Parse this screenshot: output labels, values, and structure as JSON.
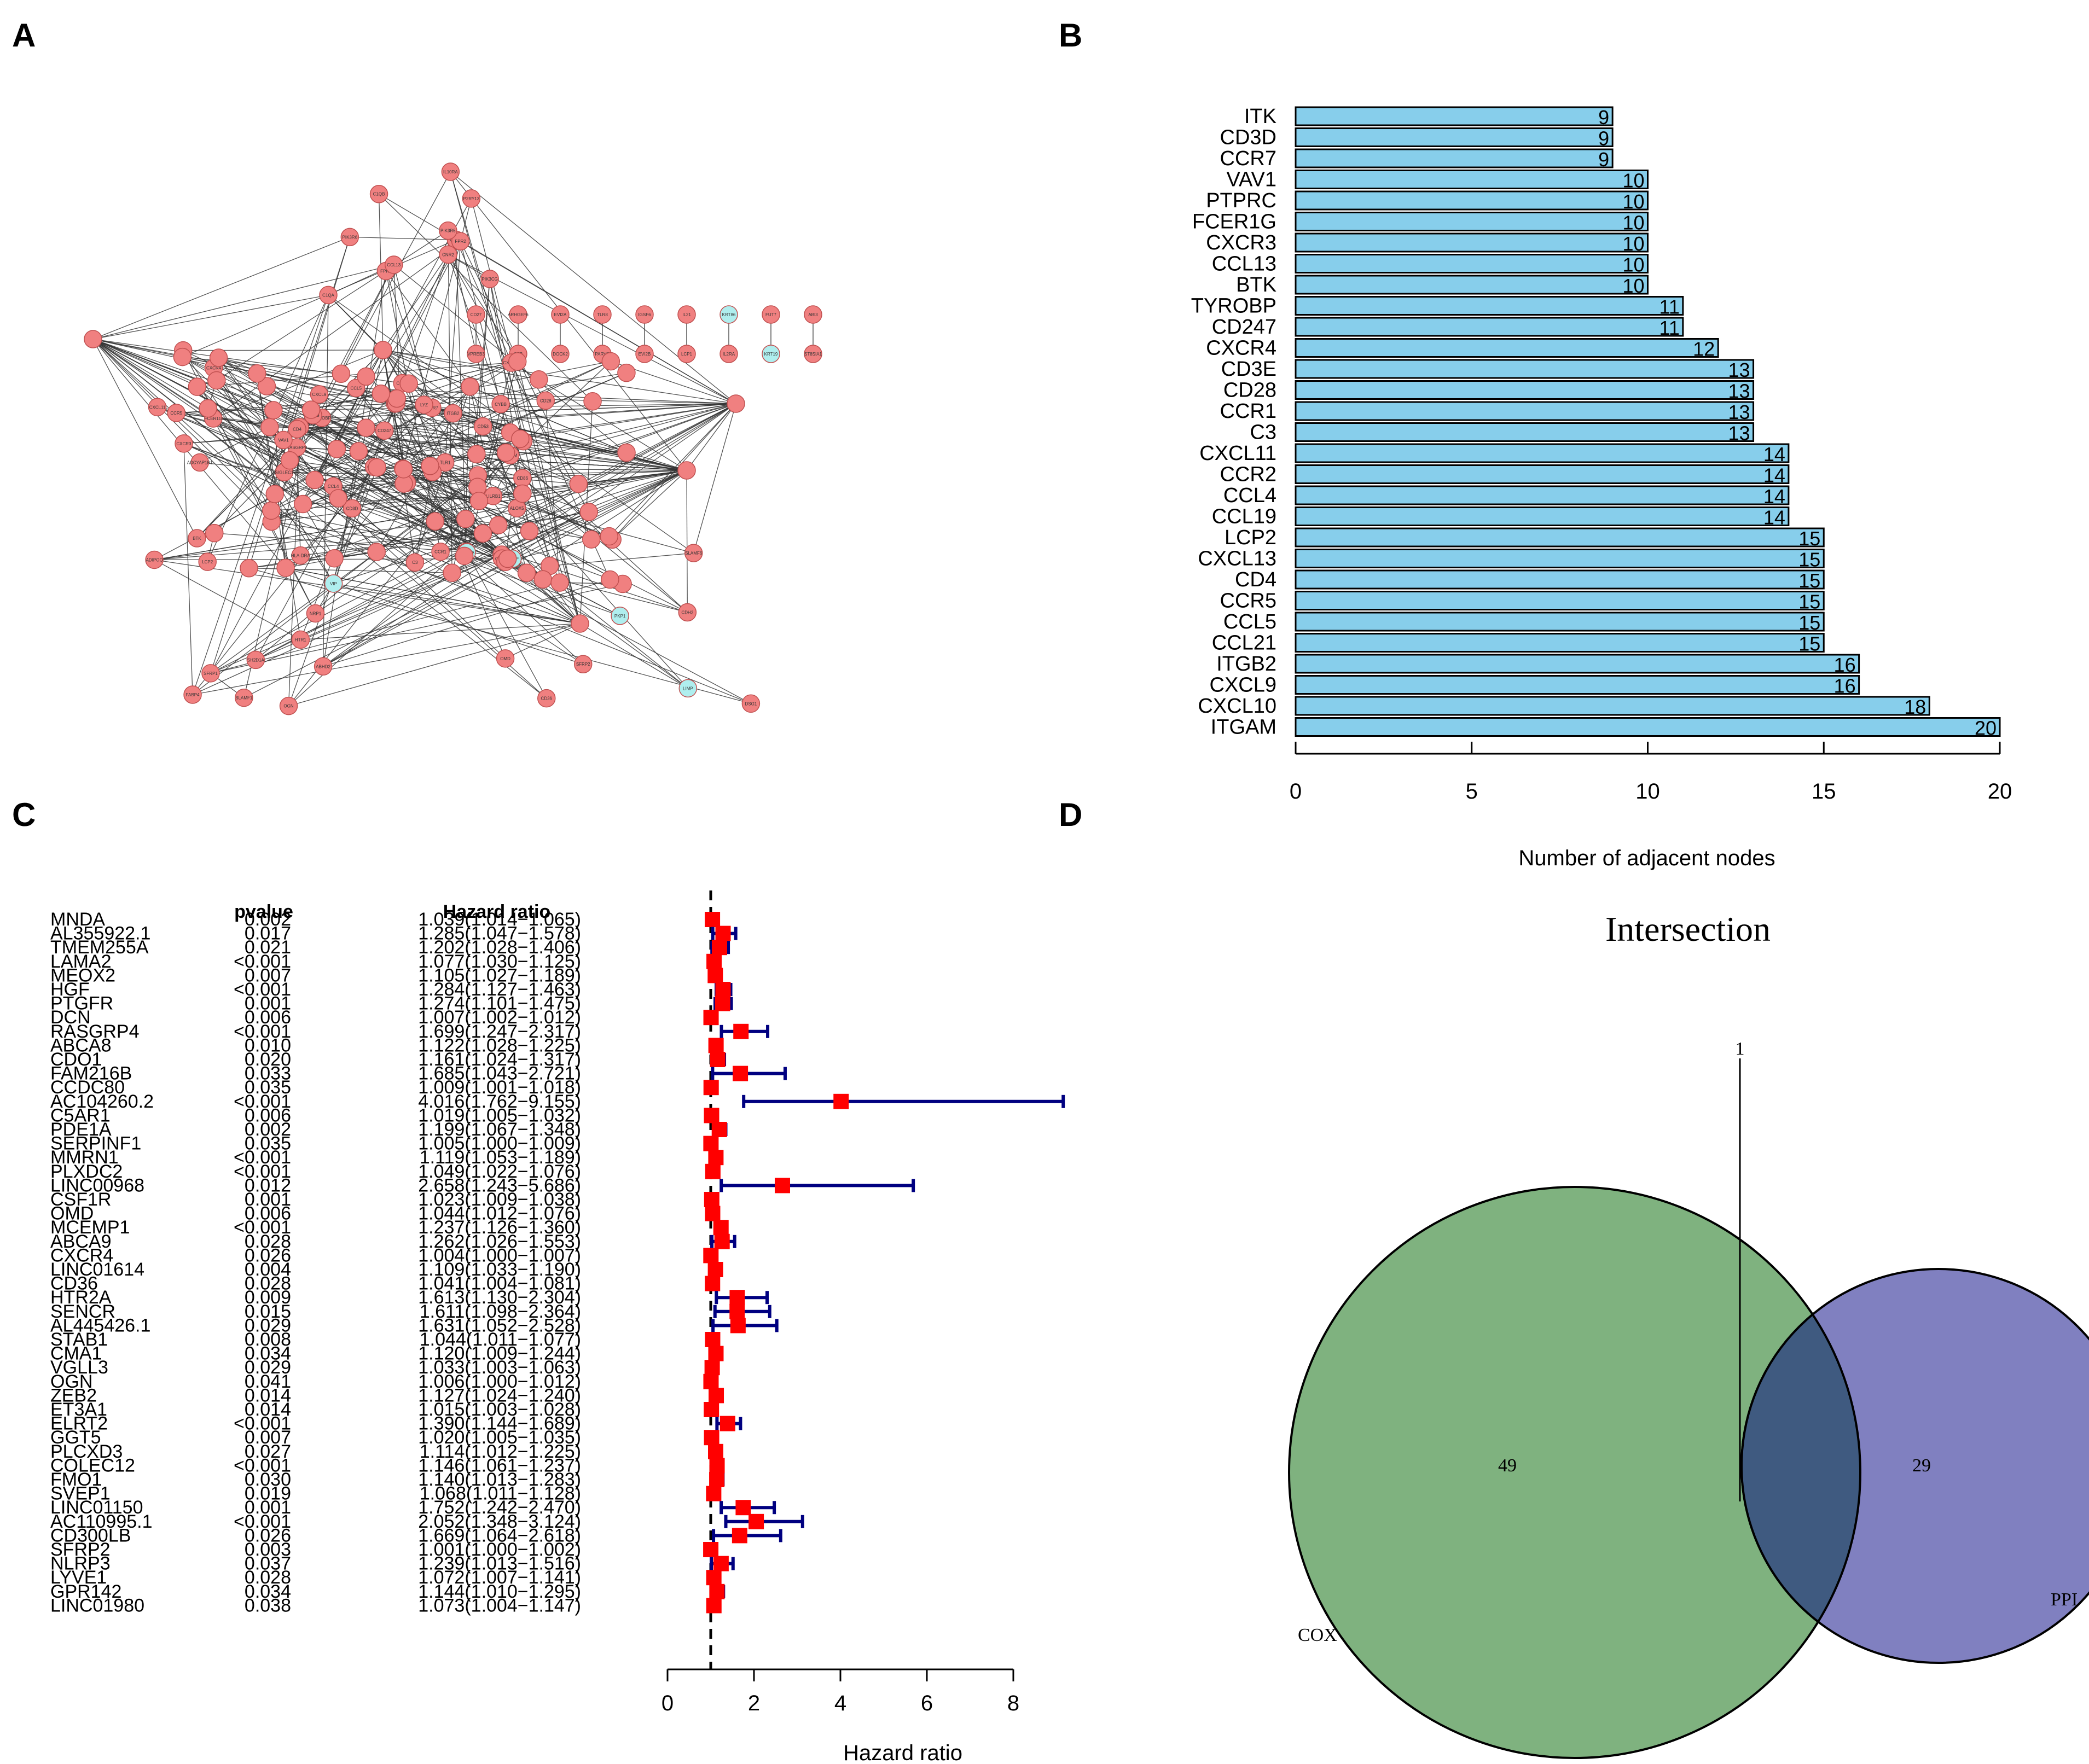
{
  "panels": {
    "a": "A",
    "b": "B",
    "c": "C",
    "d": "D"
  },
  "colors": {
    "bar_fill": "#87CEEB",
    "node_pink": "#F08080",
    "node_cyan": "#AFEEEE",
    "forest_square": "#FF0000",
    "forest_ci": "#000080",
    "venn_cox": "#7FB27F",
    "venn_ppi": "#8080C0",
    "venn_overlap": "#3F5A80"
  },
  "network": {
    "description_nodes": [
      "C1QA",
      "C1QB",
      "C1QC",
      "FPR1",
      "FPR2",
      "CNR2",
      "P2RY13",
      "CCL13",
      "IL10RA",
      "PIK3R5",
      "PIK3CG",
      "PIK3R6",
      "ALOX5",
      "CD27",
      "ARHGEF6",
      "EVI2A",
      "TLR8",
      "IGSF6",
      "IL21",
      "KRT86",
      "FUT7",
      "ABI3",
      "VPREB3",
      "CFP",
      "DOCK2",
      "PARVG",
      "EVI2B",
      "LCP1",
      "IL2RA",
      "KRT19",
      "ST8SIA1",
      "NOD1",
      "AMBP",
      "SPI1",
      "CD53",
      "FCER1G",
      "TYROBP",
      "CD86",
      "CCR1",
      "CCR5",
      "CCL19",
      "CXCL9",
      "CXCL10",
      "CD4",
      "C3",
      "CCL5",
      "MMP9",
      "RASGRP4",
      "SIGLEC1",
      "CLEC4E",
      "ITGAM",
      "LILRB1",
      "ITK",
      "CD3D",
      "CD3E",
      "CCR7",
      "CD247",
      "VAV1",
      "PTPRC",
      "BTK",
      "CXCR3",
      "CXCR4",
      "CD28",
      "CCR2",
      "CCL4",
      "LCP2",
      "CXCL13",
      "CCL21",
      "ITGB2",
      "CXCL11",
      "SELL",
      "TLR2",
      "TLR1",
      "LYZ",
      "CYBB",
      "HLA-DRA",
      "ADCYAP1R1",
      "ADIPOQ",
      "CD36",
      "FABP4",
      "OGN",
      "OMD",
      "VIP",
      "HTR1",
      "SFRP1",
      "SFRP2",
      "WNT2A",
      "SLAMF1",
      "SH2D1A",
      "SLAMF6",
      "LIMP",
      "DSG1",
      "PKP1",
      "ABHD2",
      "CDH2",
      "NRP1"
    ]
  },
  "bar_chart": {
    "xlabel": "Number of adjacent nodes",
    "ticks": [
      0,
      5,
      10,
      15,
      20
    ]
  },
  "forest": {
    "header_pvalue": "pvalue",
    "header_hr": "Hazard ratio",
    "xlabel": "Hazard ratio",
    "ticks": [
      0,
      2,
      4,
      6,
      8
    ]
  },
  "venn": {
    "title": "Intersection",
    "cox_label": "COX",
    "ppi_label": "PPI",
    "cox_only": "49",
    "ppi_only": "29",
    "overlap": "1"
  },
  "chart_data": [
    {
      "type": "bar",
      "orientation": "horizontal",
      "title": "",
      "xlabel": "Number of adjacent nodes",
      "ylabel": "",
      "xlim": [
        0,
        20
      ],
      "categories": [
        "ITK",
        "CD3D",
        "CCR7",
        "VAV1",
        "PTPRC",
        "FCER1G",
        "CXCR3",
        "CCL13",
        "BTK",
        "TYROBP",
        "CD247",
        "CXCR4",
        "CD3E",
        "CD28",
        "CCR1",
        "C3",
        "CXCL11",
        "CCR2",
        "CCL4",
        "CCL19",
        "LCP2",
        "CXCL13",
        "CD4",
        "CCR5",
        "CCL5",
        "CCL21",
        "ITGB2",
        "CXCL9",
        "CXCL10",
        "ITGAM"
      ],
      "values": [
        9,
        9,
        9,
        10,
        10,
        10,
        10,
        10,
        10,
        11,
        11,
        12,
        13,
        13,
        13,
        13,
        14,
        14,
        14,
        14,
        15,
        15,
        15,
        15,
        15,
        15,
        16,
        16,
        18,
        20
      ]
    },
    {
      "type": "scatter",
      "subtype": "forest",
      "title": "",
      "xlabel": "Hazard ratio",
      "xlim": [
        0,
        8
      ],
      "reference_line": 1,
      "rows": [
        {
          "gene": "MNDA",
          "pvalue": "0.002",
          "hr_text": "1.039(1.014−1.065)",
          "hr": 1.039,
          "lo": 1.014,
          "hi": 1.065
        },
        {
          "gene": "AL355922.1",
          "pvalue": "0.017",
          "hr_text": "1.285(1.047−1.578)",
          "hr": 1.285,
          "lo": 1.047,
          "hi": 1.578
        },
        {
          "gene": "TMEM255A",
          "pvalue": "0.021",
          "hr_text": "1.202(1.028−1.406)",
          "hr": 1.202,
          "lo": 1.028,
          "hi": 1.406
        },
        {
          "gene": "LAMA2",
          "pvalue": "<0.001",
          "hr_text": "1.077(1.030−1.125)",
          "hr": 1.077,
          "lo": 1.03,
          "hi": 1.125
        },
        {
          "gene": "MEOX2",
          "pvalue": "0.007",
          "hr_text": "1.105(1.027−1.189)",
          "hr": 1.105,
          "lo": 1.027,
          "hi": 1.189
        },
        {
          "gene": "HGF",
          "pvalue": "<0.001",
          "hr_text": "1.284(1.127−1.463)",
          "hr": 1.284,
          "lo": 1.127,
          "hi": 1.463
        },
        {
          "gene": "PTGFR",
          "pvalue": "0.001",
          "hr_text": "1.274(1.101−1.475)",
          "hr": 1.274,
          "lo": 1.101,
          "hi": 1.475
        },
        {
          "gene": "DCN",
          "pvalue": "0.006",
          "hr_text": "1.007(1.002−1.012)",
          "hr": 1.007,
          "lo": 1.002,
          "hi": 1.012
        },
        {
          "gene": "RASGRP4",
          "pvalue": "<0.001",
          "hr_text": "1.699(1.247−2.317)",
          "hr": 1.699,
          "lo": 1.247,
          "hi": 2.317
        },
        {
          "gene": "ABCA8",
          "pvalue": "0.010",
          "hr_text": "1.122(1.028−1.225)",
          "hr": 1.122,
          "lo": 1.028,
          "hi": 1.225
        },
        {
          "gene": "CDO1",
          "pvalue": "0.020",
          "hr_text": "1.161(1.024−1.317)",
          "hr": 1.161,
          "lo": 1.024,
          "hi": 1.317
        },
        {
          "gene": "FAM216B",
          "pvalue": "0.033",
          "hr_text": "1.685(1.043−2.721)",
          "hr": 1.685,
          "lo": 1.043,
          "hi": 2.721
        },
        {
          "gene": "CCDC80",
          "pvalue": "0.035",
          "hr_text": "1.009(1.001−1.018)",
          "hr": 1.009,
          "lo": 1.001,
          "hi": 1.018
        },
        {
          "gene": "AC104260.2",
          "pvalue": "<0.001",
          "hr_text": "4.016(1.762−9.155)",
          "hr": 4.016,
          "lo": 1.762,
          "hi": 9.155
        },
        {
          "gene": "C5AR1",
          "pvalue": "0.006",
          "hr_text": "1.019(1.005−1.032)",
          "hr": 1.019,
          "lo": 1.005,
          "hi": 1.032
        },
        {
          "gene": "PDE1A",
          "pvalue": "0.002",
          "hr_text": "1.199(1.067−1.348)",
          "hr": 1.199,
          "lo": 1.067,
          "hi": 1.348
        },
        {
          "gene": "SERPINF1",
          "pvalue": "0.035",
          "hr_text": "1.005(1.000−1.009)",
          "hr": 1.005,
          "lo": 1.0,
          "hi": 1.009
        },
        {
          "gene": "MMRN1",
          "pvalue": "<0.001",
          "hr_text": "1.119(1.053−1.189)",
          "hr": 1.119,
          "lo": 1.053,
          "hi": 1.189
        },
        {
          "gene": "PLXDC2",
          "pvalue": "<0.001",
          "hr_text": "1.049(1.022−1.076)",
          "hr": 1.049,
          "lo": 1.022,
          "hi": 1.076
        },
        {
          "gene": "LINC00968",
          "pvalue": "0.012",
          "hr_text": "2.658(1.243−5.686)",
          "hr": 2.658,
          "lo": 1.243,
          "hi": 5.686
        },
        {
          "gene": "CSF1R",
          "pvalue": "0.001",
          "hr_text": "1.023(1.009−1.038)",
          "hr": 1.023,
          "lo": 1.009,
          "hi": 1.038
        },
        {
          "gene": "OMD",
          "pvalue": "0.006",
          "hr_text": "1.044(1.012−1.076)",
          "hr": 1.044,
          "lo": 1.012,
          "hi": 1.076
        },
        {
          "gene": "MCEMP1",
          "pvalue": "<0.001",
          "hr_text": "1.237(1.126−1.360)",
          "hr": 1.237,
          "lo": 1.126,
          "hi": 1.36
        },
        {
          "gene": "ABCA9",
          "pvalue": "0.028",
          "hr_text": "1.262(1.026−1.553)",
          "hr": 1.262,
          "lo": 1.026,
          "hi": 1.553
        },
        {
          "gene": "CXCR4",
          "pvalue": "0.026",
          "hr_text": "1.004(1.000−1.007)",
          "hr": 1.004,
          "lo": 1.0,
          "hi": 1.007
        },
        {
          "gene": "LINC01614",
          "pvalue": "0.004",
          "hr_text": "1.109(1.033−1.190)",
          "hr": 1.109,
          "lo": 1.033,
          "hi": 1.19
        },
        {
          "gene": "CD36",
          "pvalue": "0.028",
          "hr_text": "1.041(1.004−1.081)",
          "hr": 1.041,
          "lo": 1.004,
          "hi": 1.081
        },
        {
          "gene": "HTR2A",
          "pvalue": "0.009",
          "hr_text": "1.613(1.130−2.304)",
          "hr": 1.613,
          "lo": 1.13,
          "hi": 2.304
        },
        {
          "gene": "SENCR",
          "pvalue": "0.015",
          "hr_text": "1.611(1.098−2.364)",
          "hr": 1.611,
          "lo": 1.098,
          "hi": 2.364
        },
        {
          "gene": "AL445426.1",
          "pvalue": "0.029",
          "hr_text": "1.631(1.052−2.528)",
          "hr": 1.631,
          "lo": 1.052,
          "hi": 2.528
        },
        {
          "gene": "STAB1",
          "pvalue": "0.008",
          "hr_text": "1.044(1.011−1.077)",
          "hr": 1.044,
          "lo": 1.011,
          "hi": 1.077
        },
        {
          "gene": "CMA1",
          "pvalue": "0.034",
          "hr_text": "1.120(1.009−1.244)",
          "hr": 1.12,
          "lo": 1.009,
          "hi": 1.244
        },
        {
          "gene": "VGLL3",
          "pvalue": "0.029",
          "hr_text": "1.033(1.003−1.063)",
          "hr": 1.033,
          "lo": 1.003,
          "hi": 1.063
        },
        {
          "gene": "OGN",
          "pvalue": "0.041",
          "hr_text": "1.006(1.000−1.012)",
          "hr": 1.006,
          "lo": 1.0,
          "hi": 1.012
        },
        {
          "gene": "ZEB2",
          "pvalue": "0.014",
          "hr_text": "1.127(1.024−1.240)",
          "hr": 1.127,
          "lo": 1.024,
          "hi": 1.24
        },
        {
          "gene": "ET3A1",
          "pvalue": "0.014",
          "hr_text": "1.015(1.003−1.028)",
          "hr": 1.015,
          "lo": 1.003,
          "hi": 1.028
        },
        {
          "gene": "ELRT2",
          "pvalue": "<0.001",
          "hr_text": "1.390(1.144−1.689)",
          "hr": 1.39,
          "lo": 1.144,
          "hi": 1.689
        },
        {
          "gene": "GGT5",
          "pvalue": "0.007",
          "hr_text": "1.020(1.005−1.035)",
          "hr": 1.02,
          "lo": 1.005,
          "hi": 1.035
        },
        {
          "gene": "PLCXD3",
          "pvalue": "0.027",
          "hr_text": "1.114(1.012−1.225)",
          "hr": 1.114,
          "lo": 1.012,
          "hi": 1.225
        },
        {
          "gene": "COLEC12",
          "pvalue": "<0.001",
          "hr_text": "1.146(1.061−1.237)",
          "hr": 1.146,
          "lo": 1.061,
          "hi": 1.237
        },
        {
          "gene": "FMO1",
          "pvalue": "0.030",
          "hr_text": "1.140(1.013−1.283)",
          "hr": 1.14,
          "lo": 1.013,
          "hi": 1.283
        },
        {
          "gene": "SVEP1",
          "pvalue": "0.019",
          "hr_text": "1.068(1.011−1.128)",
          "hr": 1.068,
          "lo": 1.011,
          "hi": 1.128
        },
        {
          "gene": "LINC01150",
          "pvalue": "0.001",
          "hr_text": "1.752(1.242−2.470)",
          "hr": 1.752,
          "lo": 1.242,
          "hi": 2.47
        },
        {
          "gene": "AC110995.1",
          "pvalue": "<0.001",
          "hr_text": "2.052(1.348−3.124)",
          "hr": 2.052,
          "lo": 1.348,
          "hi": 3.124
        },
        {
          "gene": "CD300LB",
          "pvalue": "0.026",
          "hr_text": "1.669(1.064−2.618)",
          "hr": 1.669,
          "lo": 1.064,
          "hi": 2.618
        },
        {
          "gene": "SFRP2",
          "pvalue": "0.003",
          "hr_text": "1.001(1.000−1.002)",
          "hr": 1.001,
          "lo": 1.0,
          "hi": 1.002
        },
        {
          "gene": "NLRP3",
          "pvalue": "0.037",
          "hr_text": "1.239(1.013−1.516)",
          "hr": 1.239,
          "lo": 1.013,
          "hi": 1.516
        },
        {
          "gene": "LYVE1",
          "pvalue": "0.028",
          "hr_text": "1.072(1.007−1.141)",
          "hr": 1.072,
          "lo": 1.007,
          "hi": 1.141
        },
        {
          "gene": "GPR142",
          "pvalue": "0.034",
          "hr_text": "1.144(1.010−1.295)",
          "hr": 1.144,
          "lo": 1.01,
          "hi": 1.295
        },
        {
          "gene": "LINC01980",
          "pvalue": "0.038",
          "hr_text": "1.073(1.004−1.147)",
          "hr": 1.073,
          "lo": 1.004,
          "hi": 1.147
        }
      ]
    },
    {
      "type": "venn",
      "title": "Intersection",
      "sets": [
        {
          "name": "COX",
          "only": 49
        },
        {
          "name": "PPI",
          "only": 29
        }
      ],
      "intersection": 1
    }
  ]
}
